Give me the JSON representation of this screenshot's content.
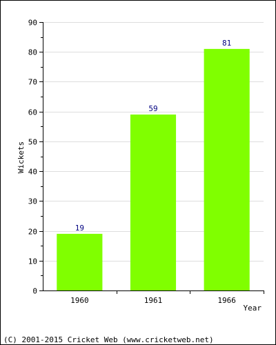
{
  "chart_data": {
    "type": "bar",
    "categories": [
      "1960",
      "1961",
      "1966"
    ],
    "values": [
      19,
      59,
      81
    ],
    "title": "",
    "xlabel": "Year",
    "ylabel": "Wickets",
    "ylim": [
      0,
      90
    ],
    "yticks": [
      0,
      10,
      20,
      30,
      40,
      50,
      60,
      70,
      80,
      90
    ],
    "grid": true,
    "legend": "none",
    "bar_color": "#80ff00",
    "value_label_color": "#000080"
  },
  "footer": {
    "copyright": "(C) 2001-2015 Cricket Web (www.cricketweb.net)"
  }
}
